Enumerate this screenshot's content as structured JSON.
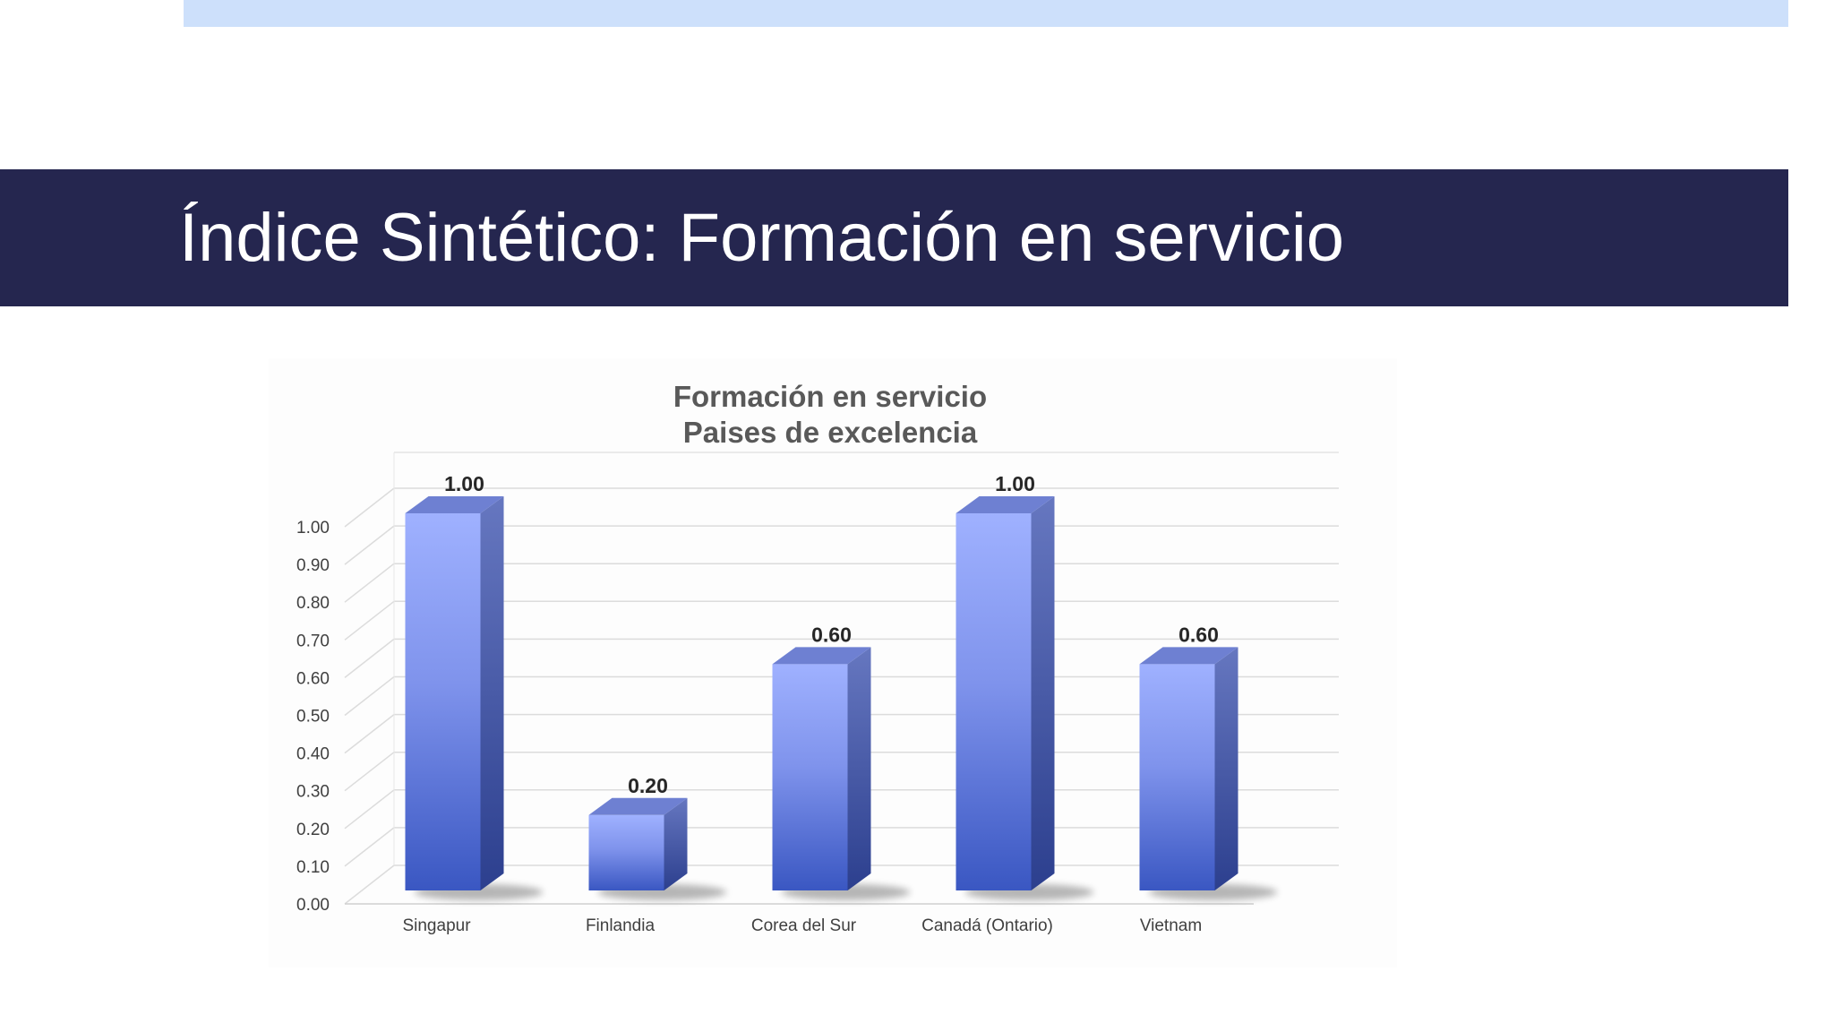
{
  "slide": {
    "title": "Índice Sintético: Formación en servicio"
  },
  "colors": {
    "title_bar": "#25264f",
    "top_band": "#cde0fb",
    "bottom_band": "#dbe7fb",
    "bar_light": "#9fb1ff",
    "bar_dark": "#3a57c2",
    "bar_side": "#4a5fa8"
  },
  "chart_data": {
    "type": "bar",
    "title_lines": [
      "Formación en servicio",
      "Paises de excelencia"
    ],
    "categories": [
      "Singapur",
      "Finlandia",
      "Corea del Sur",
      "Canadá (Ontario)",
      "Vietnam"
    ],
    "values": [
      1.0,
      0.2,
      0.6,
      1.0,
      0.6
    ],
    "data_labels": [
      "1.00",
      "0.20",
      "0.60",
      "1.00",
      "0.60"
    ],
    "y_ticks": [
      "0.00",
      "0.10",
      "0.20",
      "0.30",
      "0.40",
      "0.50",
      "0.60",
      "0.70",
      "0.80",
      "0.90",
      "1.00"
    ],
    "ylim": [
      0,
      1.0
    ],
    "grid": true,
    "legend": "none",
    "style": "3d-column"
  }
}
